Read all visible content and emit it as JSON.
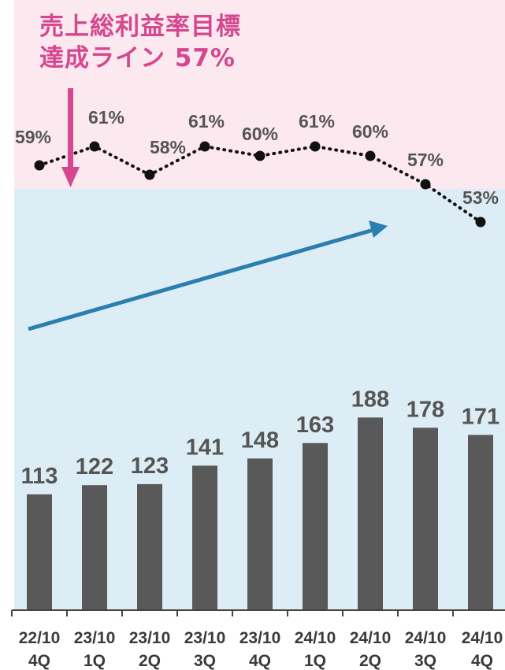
{
  "annotation": {
    "line1": "売上総利益率目標",
    "line2": "達成ライン 57%",
    "target_rate": 57
  },
  "chart_data": {
    "type": "bar",
    "categories": [
      [
        "22/10",
        "4Q"
      ],
      [
        "23/10",
        "1Q"
      ],
      [
        "23/10",
        "2Q"
      ],
      [
        "23/10",
        "3Q"
      ],
      [
        "23/10",
        "4Q"
      ],
      [
        "24/10",
        "1Q"
      ],
      [
        "24/10",
        "2Q"
      ],
      [
        "24/10",
        "3Q"
      ],
      [
        "24/10",
        "4Q"
      ]
    ],
    "series": [
      {
        "type": "bar",
        "values": [
          113,
          122,
          123,
          141,
          148,
          163,
          188,
          178,
          171
        ],
        "labels": [
          "113",
          "122",
          "123",
          "141",
          "148",
          "163",
          "188",
          "178",
          "171"
        ]
      },
      {
        "type": "line",
        "values": [
          59,
          61,
          58,
          61,
          60,
          61,
          60,
          57,
          53
        ],
        "labels": [
          "59%",
          "61%",
          "58%",
          "61%",
          "60%",
          "61%",
          "60%",
          "57%",
          "53%"
        ]
      }
    ],
    "threshold": 57,
    "colors": {
      "bar": "#595959",
      "line": "#111111",
      "arrow": "#2a7fb0",
      "target_arrow": "#d6478f",
      "upper_band": "#fbe9ef",
      "lower_band": "#dcedf5"
    }
  }
}
